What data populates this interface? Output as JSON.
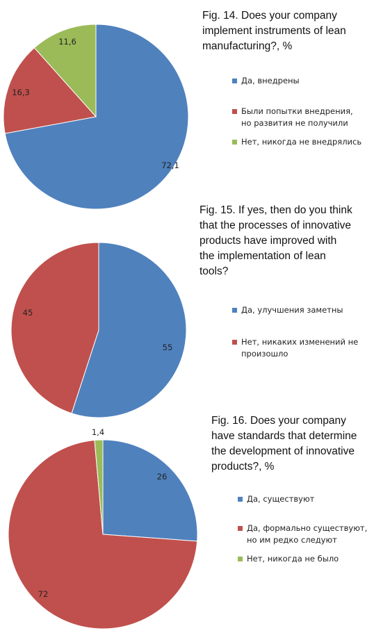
{
  "chart_data": [
    {
      "type": "pie",
      "title": "Fig. 14. Does your company implement instruments of lean manufacturing?, %",
      "title_lines": [
        "Fig. 14. Does your company",
        "implement instruments of lean",
        "manufacturing?, %"
      ],
      "slices": [
        {
          "label": "Да, внедрены",
          "value": 72.1,
          "value_label": "72,1",
          "color": "#4F81BD"
        },
        {
          "label": "Были попытки внедрения,\nно развития не получили",
          "value": 16.3,
          "value_label": "16,3",
          "color": "#C0504D"
        },
        {
          "label": "Нет, никогда не внедрялись",
          "value": 11.6,
          "value_label": "11,6",
          "color": "#9BBB59"
        }
      ]
    },
    {
      "type": "pie",
      "title": "Fig. 15. If yes, then do you think that the processes of innovative products have improved with the implementation of lean tools?",
      "title_lines": [
        "Fig. 15. If yes, then do you think",
        "that the processes of innovative",
        "products have improved with",
        "the implementation of lean",
        "tools?"
      ],
      "slices": [
        {
          "label": "Да, улучшения заметны",
          "value": 55,
          "value_label": "55",
          "color": "#4F81BD"
        },
        {
          "label": "Нет, никаких изменений не\nпроизошло",
          "value": 45,
          "value_label": "45",
          "color": "#C0504D"
        }
      ]
    },
    {
      "type": "pie",
      "title": "Fig. 16. Does your company have standards that determine the development of innovative products?, %",
      "title_lines": [
        "Fig. 16. Does your company",
        "have standards that determine",
        "the development of innovative",
        "products?, %"
      ],
      "slices": [
        {
          "label": "Да, существуют",
          "value": 26,
          "value_label": "26",
          "color": "#4F81BD"
        },
        {
          "label": "Да, формально существуют,\nно им редко следуют",
          "value": 72,
          "value_label": "72",
          "color": "#C0504D"
        },
        {
          "label": "Нет, никогда не было",
          "value": 1.4,
          "value_label": "1,4",
          "color": "#9BBB59"
        }
      ]
    }
  ]
}
